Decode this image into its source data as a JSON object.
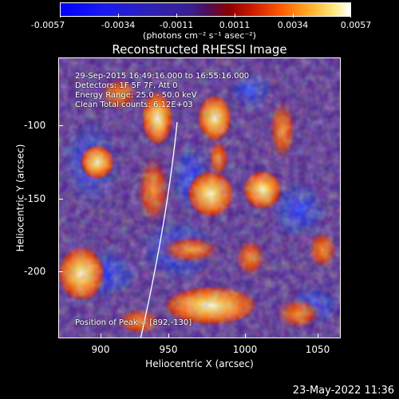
{
  "colorbar": {
    "ticks": [
      "-0.0057",
      "-0.0034",
      "-0.0011",
      "0.0011",
      "0.0034",
      "0.0057"
    ],
    "units": "(photons cm⁻² s⁻¹ asec⁻²)"
  },
  "title": "Reconstructed RHESSI Image",
  "info": {
    "line1": "29-Sep-2015 16:49:16.000 to 16:55:16.000",
    "line2": "Detectors: 1F 5F 7F, Att 0",
    "line3": "Energy Range: 25.0 - 50.0 keV",
    "line4": "Clean      Total counts: 6.12E+03",
    "peak": "Position of Peak = [892,-130]"
  },
  "axes": {
    "xlabel": "Heliocentric X (arcsec)",
    "ylabel": "Heliocentric Y (arcsec)",
    "xticks": [
      "900",
      "950",
      "1000",
      "1050"
    ],
    "yticks": [
      "-100",
      "-150",
      "-200"
    ],
    "xrange": [
      870,
      1065
    ],
    "yrange": [
      -250,
      -55
    ]
  },
  "datestamp": "23-May-2022 11:36",
  "colors": {
    "background": "#000000",
    "limb": "#ffffff"
  }
}
